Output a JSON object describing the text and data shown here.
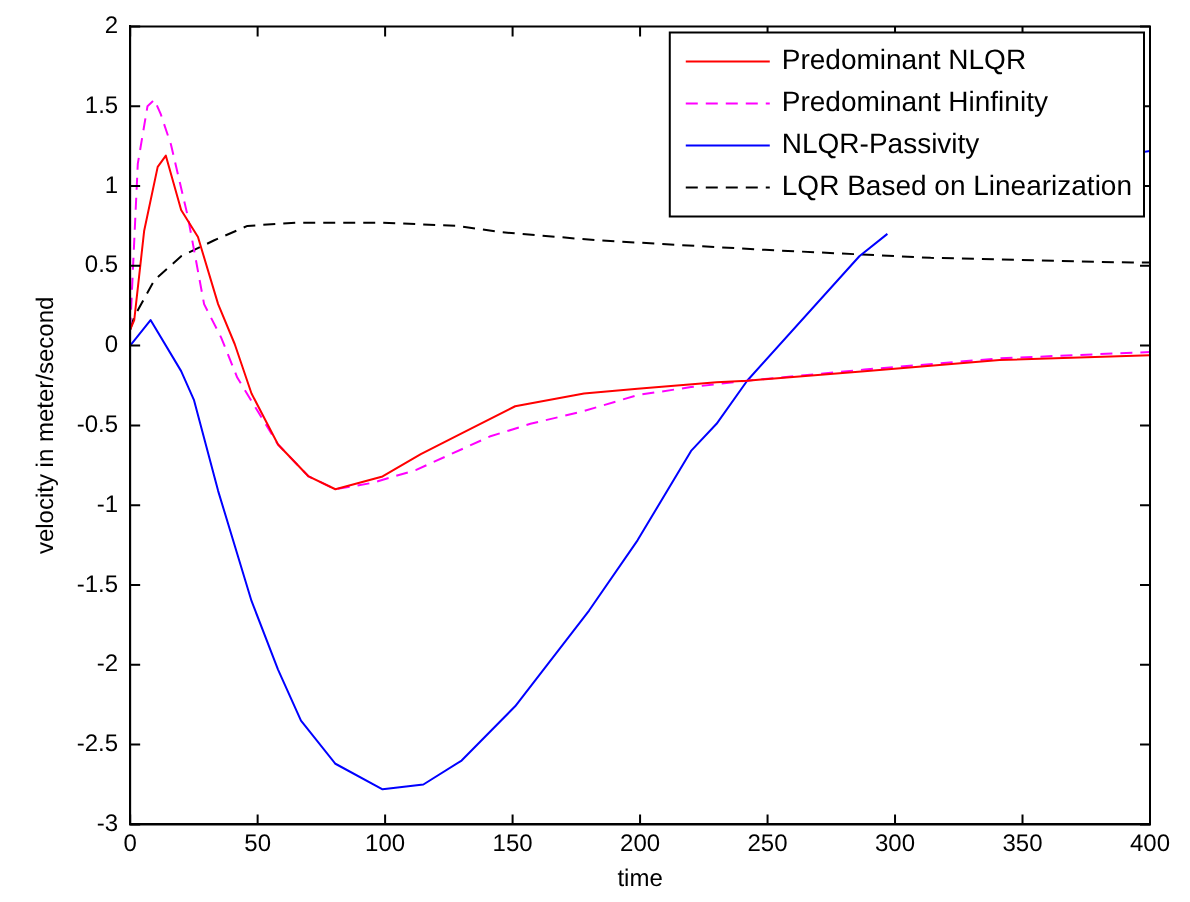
{
  "chart_data": {
    "type": "line",
    "xlabel": "time",
    "ylabel": "velocity in meter/second",
    "xlim": [
      0,
      400
    ],
    "xticks": [
      0,
      50,
      100,
      150,
      200,
      250,
      300,
      350,
      400
    ],
    "ylim": [
      -3,
      2
    ],
    "yticks": [
      -3,
      -2.5,
      -2,
      -1.5,
      -1,
      -0.5,
      0,
      0.5,
      1,
      1.5,
      2
    ],
    "grid": false,
    "legend": "top right",
    "marker": "none",
    "series": [
      {
        "name": "Predominant NLQR",
        "color": "#ff0000",
        "line_style": "solid",
        "x": [
          0,
          1.6,
          5.5,
          10.8,
          14,
          20,
          26.6,
          34.5,
          41,
          47.6,
          58,
          70,
          80.5,
          99,
          114,
          130,
          151,
          178,
          199,
          230,
          242,
          288,
          341,
          400
        ],
        "values": [
          0.1,
          0.16,
          0.72,
          1.12,
          1.19,
          0.85,
          0.68,
          0.26,
          0.01,
          -0.3,
          -0.62,
          -0.82,
          -0.9,
          -0.82,
          -0.68,
          -0.55,
          -0.38,
          -0.3,
          -0.27,
          -0.23,
          -0.22,
          -0.16,
          -0.09,
          -0.06
        ]
      },
      {
        "name": "Predominant Hinfinity",
        "color": "#ff00ff",
        "line_style": "dashed",
        "x": [
          0,
          3,
          6.8,
          9.5,
          12,
          16,
          22.6,
          29,
          35.7,
          42,
          50,
          58,
          70,
          80.5,
          95,
          112,
          141,
          157,
          178,
          199,
          220,
          242,
          288,
          341,
          400
        ],
        "values": [
          0.1,
          1.14,
          1.5,
          1.54,
          1.45,
          1.26,
          0.81,
          0.26,
          0.05,
          -0.2,
          -0.41,
          -0.62,
          -0.82,
          -0.9,
          -0.86,
          -0.78,
          -0.57,
          -0.49,
          -0.41,
          -0.31,
          -0.26,
          -0.22,
          -0.15,
          -0.08,
          -0.04
        ]
      },
      {
        "name": "NLQR-Passivity",
        "color": "#0000ff",
        "line_style": "solid",
        "x": [
          0,
          8,
          20,
          25,
          34.5,
          47.6,
          58,
          67,
          80.5,
          99,
          115,
          130,
          151,
          180,
          199,
          220,
          230,
          242,
          286,
          297,
          310,
          396,
          400
        ],
        "values": [
          0,
          0.16,
          -0.16,
          -0.34,
          -0.91,
          -1.6,
          -2.03,
          -2.35,
          -2.62,
          -2.78,
          -2.75,
          -2.6,
          -2.26,
          -1.66,
          -1.22,
          -0.66,
          -0.49,
          -0.22,
          0.56,
          0.7,
          null,
          1.21,
          1.22
        ]
      },
      {
        "name": "LQR Based on Linearization",
        "color": "#000000",
        "line_style": "dashed",
        "x": [
          0,
          1.6,
          9.5,
          20,
          33,
          46,
          65,
          99,
          128,
          146,
          183,
          249,
          314,
          393,
          400
        ],
        "values": [
          0.1,
          0.18,
          0.41,
          0.56,
          0.66,
          0.75,
          0.77,
          0.77,
          0.75,
          0.71,
          0.66,
          0.6,
          0.55,
          0.52,
          0.52
        ]
      }
    ]
  }
}
